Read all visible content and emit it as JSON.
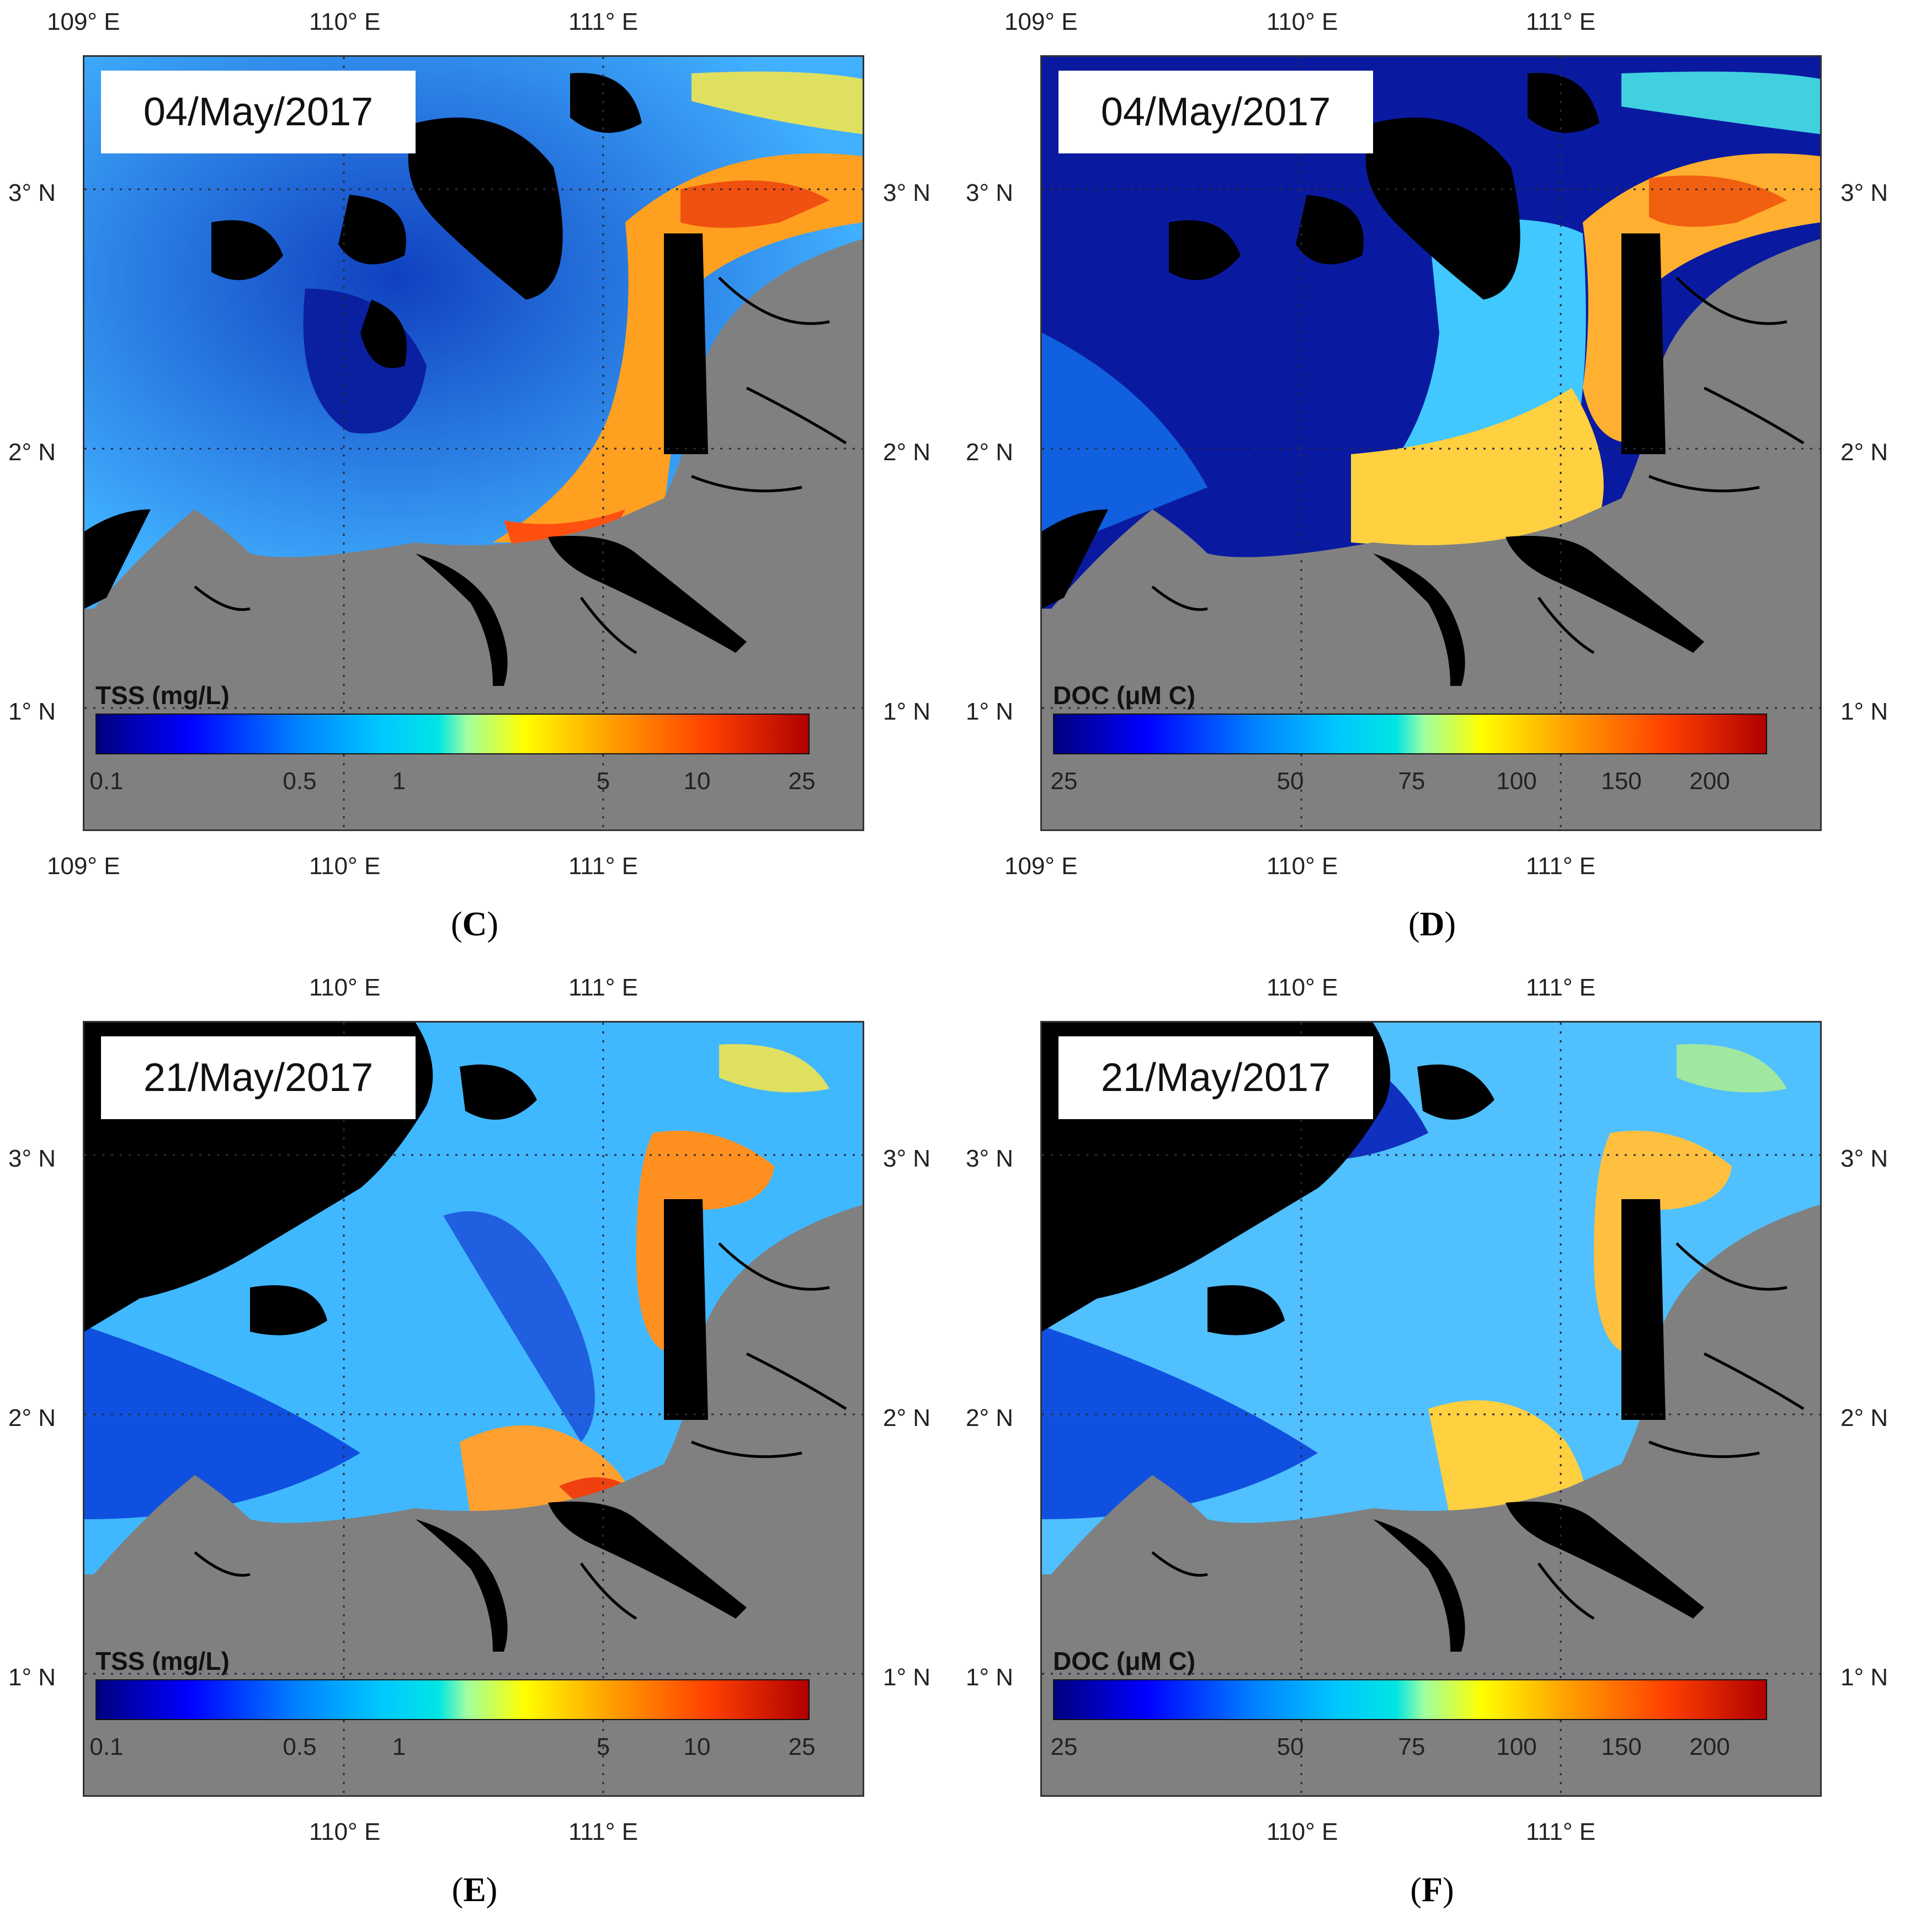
{
  "panels": [
    {
      "label": "C",
      "date": "04/May/2017",
      "variable": "TSS (mg/L)",
      "colorbar_ticks": [
        "0.1",
        "0.5",
        "1",
        "5",
        "10",
        "25"
      ],
      "top_lon_labels": [
        "109° E",
        "110° E",
        "111° E"
      ],
      "bottom_lon_labels": [
        "109° E",
        "110° E",
        "111° E"
      ],
      "left_lat_labels": [
        "3° N",
        "2° N",
        "1° N"
      ],
      "right_lat_labels": [
        "3° N",
        "2° N",
        "1° N"
      ]
    },
    {
      "label": "D",
      "date": "04/May/2017",
      "variable": "DOC (μM C)",
      "colorbar_ticks": [
        "25",
        "50",
        "75",
        "100",
        "150",
        "200"
      ],
      "top_lon_labels": [
        "109° E",
        "110° E",
        "111° E"
      ],
      "bottom_lon_labels": [
        "109° E",
        "110° E",
        "111° E"
      ],
      "left_lat_labels": [
        "3° N",
        "2° N",
        "1° N"
      ],
      "right_lat_labels": [
        "3° N",
        "2° N",
        "1° N"
      ]
    },
    {
      "label": "E",
      "date": "21/May/2017",
      "variable": "TSS (mg/L)",
      "colorbar_ticks": [
        "0.1",
        "0.5",
        "1",
        "5",
        "10",
        "25"
      ],
      "top_lon_labels": [
        "110° E",
        "111° E"
      ],
      "bottom_lon_labels": [
        "110° E",
        "111° E"
      ],
      "left_lat_labels": [
        "3° N",
        "2° N",
        "1° N"
      ],
      "right_lat_labels": [
        "3° N",
        "2° N",
        "1° N"
      ]
    },
    {
      "label": "F",
      "date": "21/May/2017",
      "variable": "DOC (μM C)",
      "colorbar_ticks": [
        "25",
        "50",
        "75",
        "100",
        "150",
        "200"
      ],
      "top_lon_labels": [
        "110° E",
        "111° E"
      ],
      "bottom_lon_labels": [
        "110° E",
        "111° E"
      ],
      "left_lat_labels": [
        "3° N",
        "2° N",
        "1° N"
      ],
      "right_lat_labels": [
        "3° N",
        "2° N",
        "1° N"
      ]
    }
  ],
  "colors": {
    "land": "#808080",
    "no_data": "#000000",
    "low": "#00007f",
    "mid": "#00e4e4",
    "high": "#b00000"
  }
}
